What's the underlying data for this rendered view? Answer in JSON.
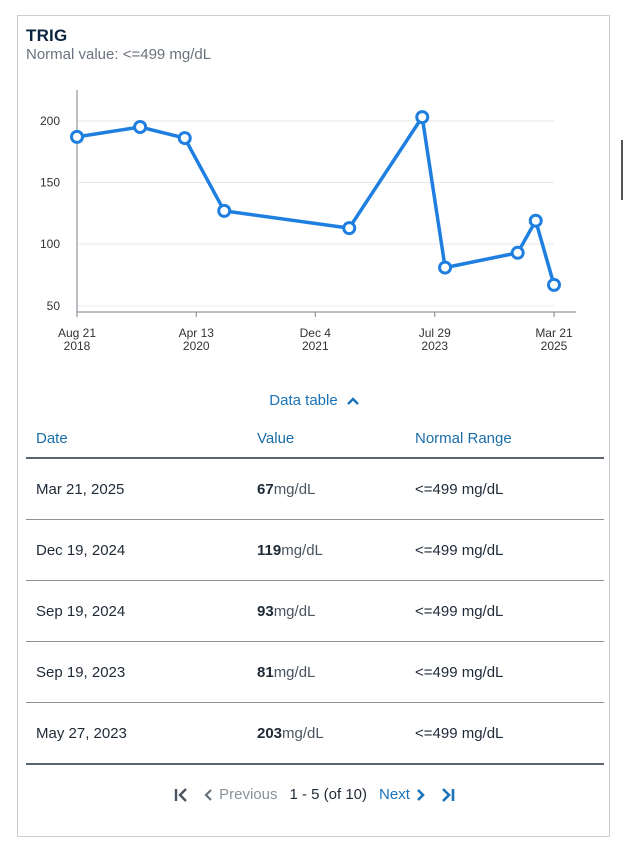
{
  "header": {
    "title": "TRIG",
    "subtitle": "Normal value: <=499 mg/dL"
  },
  "colors": {
    "series": "#1f7fe0",
    "link": "#1a73b8"
  },
  "chart_data": {
    "type": "line",
    "grid": true,
    "ylim": [
      45,
      225
    ],
    "yticks": [
      50,
      100,
      150,
      200
    ],
    "xlim": [
      "2018-08-21",
      "2025-03-21"
    ],
    "xticks": [
      {
        "date": "2018-08-21",
        "line1": "Aug 21",
        "line2": "2018"
      },
      {
        "date": "2020-04-13",
        "line1": "Apr 13",
        "line2": "2020"
      },
      {
        "date": "2021-12-04",
        "line1": "Dec 4",
        "line2": "2021"
      },
      {
        "date": "2023-07-29",
        "line1": "Jul 29",
        "line2": "2023"
      },
      {
        "date": "2025-03-21",
        "line1": "Mar 21",
        "line2": "2025"
      }
    ],
    "series": [
      {
        "points": [
          {
            "date": "2018-08-21",
            "value": 187
          },
          {
            "date": "2019-07-05",
            "value": 195
          },
          {
            "date": "2020-02-15",
            "value": 186
          },
          {
            "date": "2020-09-01",
            "value": 127
          },
          {
            "date": "2022-05-24",
            "value": 113
          },
          {
            "date": "2023-05-27",
            "value": 203
          },
          {
            "date": "2023-09-19",
            "value": 81
          },
          {
            "date": "2024-09-19",
            "value": 93
          },
          {
            "date": "2024-12-19",
            "value": 119
          },
          {
            "date": "2025-03-21",
            "value": 67
          }
        ]
      }
    ]
  },
  "table": {
    "toggle_label": "Data table",
    "headers": {
      "date": "Date",
      "value": "Value",
      "range": "Normal Range"
    },
    "rows": [
      {
        "date": "Mar 21, 2025",
        "value": "67",
        "unit": "mg/dL",
        "range": "<=499 mg/dL"
      },
      {
        "date": "Dec 19, 2024",
        "value": "119",
        "unit": "mg/dL",
        "range": "<=499 mg/dL"
      },
      {
        "date": "Sep 19, 2024",
        "value": "93",
        "unit": "mg/dL",
        "range": "<=499 mg/dL"
      },
      {
        "date": "Sep 19, 2023",
        "value": "81",
        "unit": "mg/dL",
        "range": "<=499 mg/dL"
      },
      {
        "date": "May 27, 2023",
        "value": "203",
        "unit": "mg/dL",
        "range": "<=499 mg/dL"
      }
    ]
  },
  "pagination": {
    "previous_label": "Previous",
    "info": "1 - 5 (of 10)",
    "next_label": "Next"
  }
}
